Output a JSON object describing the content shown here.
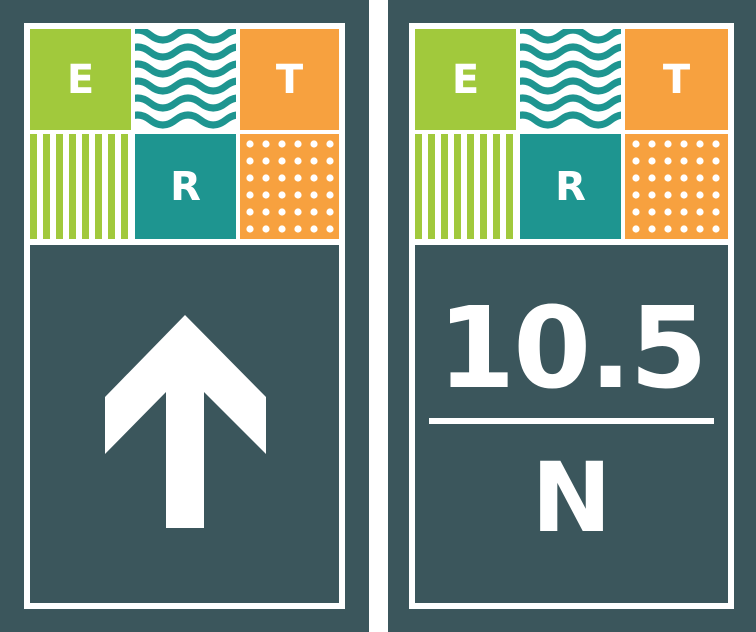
{
  "colors": {
    "background": "#3b565c",
    "green": "#a1c93c",
    "teal": "#1e9590",
    "orange": "#f7a13f",
    "white": "#ffffff"
  },
  "tiles": {
    "e": "E",
    "t": "T",
    "r": "R"
  },
  "left_sign": {
    "icon": "arrow-up-icon"
  },
  "right_sign": {
    "distance": "10.5",
    "direction": "N"
  }
}
